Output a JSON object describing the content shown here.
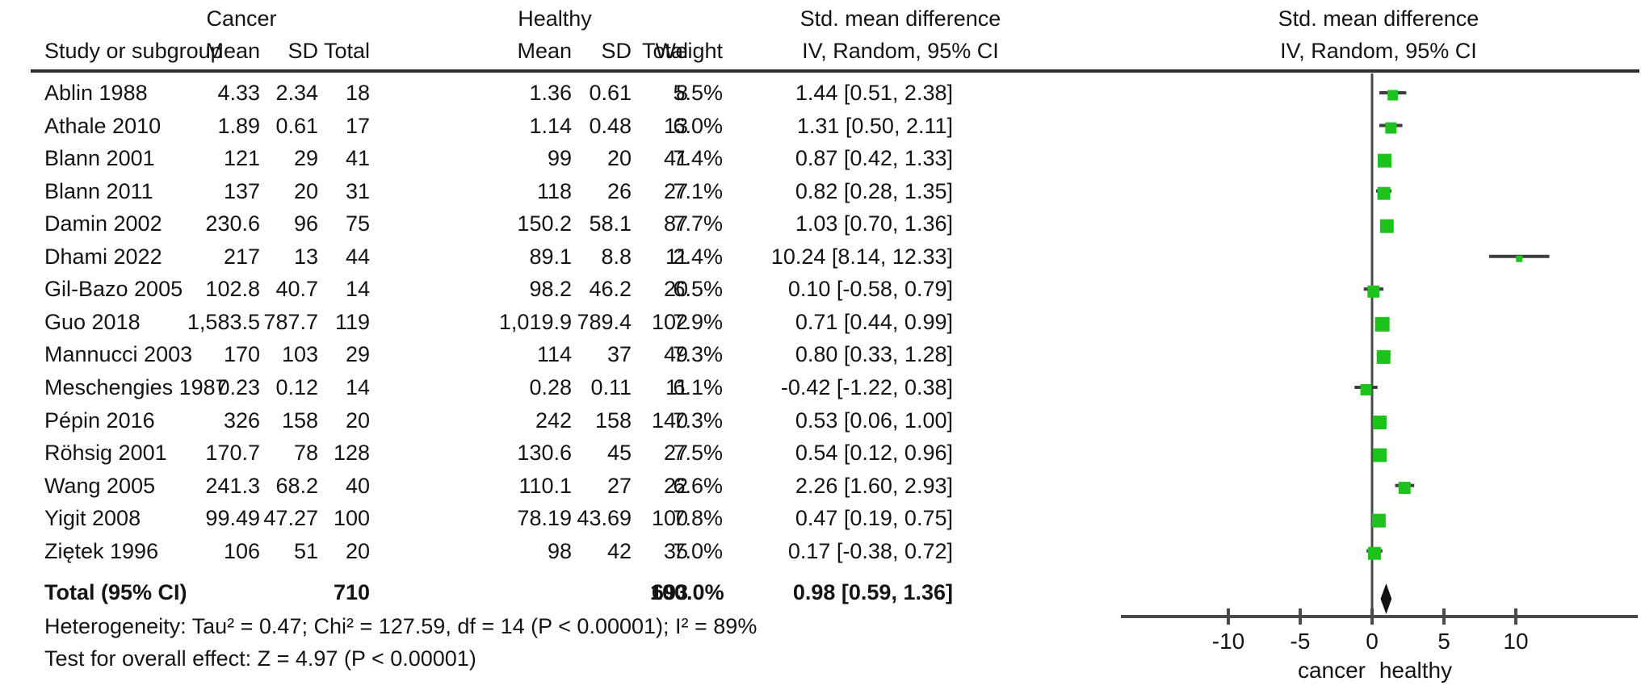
{
  "header": {
    "group_cancer": "Cancer",
    "group_healthy": "Healthy",
    "col_study": "Study or subgroup",
    "col_mean": "Mean",
    "col_sd": "SD",
    "col_total": "Total",
    "col_weight": "Weight",
    "ci_col_line1": "Std. mean difference",
    "ci_col_line2": "IV, Random, 95% CI",
    "plot_col_line1": "Std. mean difference",
    "plot_col_line2": "IV, Random, 95% CI"
  },
  "rows": [
    {
      "study": "Ablin 1988",
      "c_mean": "4.33",
      "c_sd": "2.34",
      "c_total": "18",
      "h_mean": "1.36",
      "h_sd": "0.61",
      "h_total": "8",
      "weight": "5.5%",
      "ci": "1.44 [0.51, 2.38]"
    },
    {
      "study": "Athale 2010",
      "c_mean": "1.89",
      "c_sd": "0.61",
      "c_total": "17",
      "h_mean": "1.14",
      "h_sd": "0.48",
      "h_total": "13",
      "weight": "6.0%",
      "ci": "1.31 [0.50, 2.11]"
    },
    {
      "study": "Blann 2001",
      "c_mean": "121",
      "c_sd": "29",
      "c_total": "41",
      "h_mean": "99",
      "h_sd": "20",
      "h_total": "41",
      "weight": "7.4%",
      "ci": "0.87 [0.42, 1.33]"
    },
    {
      "study": "Blann 2011",
      "c_mean": "137",
      "c_sd": "20",
      "c_total": "31",
      "h_mean": "118",
      "h_sd": "26",
      "h_total": "27",
      "weight": "7.1%",
      "ci": "0.82 [0.28, 1.35]"
    },
    {
      "study": "Damin 2002",
      "c_mean": "230.6",
      "c_sd": "96",
      "c_total": "75",
      "h_mean": "150.2",
      "h_sd": "58.1",
      "h_total": "87",
      "weight": "7.7%",
      "ci": "1.03 [0.70, 1.36]"
    },
    {
      "study": "Dhami 2022",
      "c_mean": "217",
      "c_sd": "13",
      "c_total": "44",
      "h_mean": "89.1",
      "h_sd": "8.8",
      "h_total": "11",
      "weight": "2.4%",
      "ci": "10.24 [8.14, 12.33]"
    },
    {
      "study": "Gil-Bazo 2005",
      "c_mean": "102.8",
      "c_sd": "40.7",
      "c_total": "14",
      "h_mean": "98.2",
      "h_sd": "46.2",
      "h_total": "20",
      "weight": "6.5%",
      "ci": "0.10 [-0.58, 0.79]"
    },
    {
      "study": "Guo 2018",
      "c_mean": "1,583.5",
      "c_sd": "787.7",
      "c_total": "119",
      "h_mean": "1,019.9",
      "h_sd": "789.4",
      "h_total": "102",
      "weight": "7.9%",
      "ci": "0.71 [0.44, 0.99]"
    },
    {
      "study": "Mannucci 2003",
      "c_mean": "170",
      "c_sd": "103",
      "c_total": "29",
      "h_mean": "114",
      "h_sd": "37",
      "h_total": "49",
      "weight": "7.3%",
      "ci": "0.80 [0.33, 1.28]"
    },
    {
      "study": "Meschengies 1987",
      "c_mean": "0.23",
      "c_sd": "0.12",
      "c_total": "14",
      "h_mean": "0.28",
      "h_sd": "0.11",
      "h_total": "11",
      "weight": "6.1%",
      "ci": "-0.42 [-1.22, 0.38]"
    },
    {
      "study": "Pépin 2016",
      "c_mean": "326",
      "c_sd": "158",
      "c_total": "20",
      "h_mean": "242",
      "h_sd": "158",
      "h_total": "140",
      "weight": "7.3%",
      "ci": "0.53 [0.06, 1.00]"
    },
    {
      "study": "Röhsig 2001",
      "c_mean": "170.7",
      "c_sd": "78",
      "c_total": "128",
      "h_mean": "130.6",
      "h_sd": "45",
      "h_total": "27",
      "weight": "7.5%",
      "ci": "0.54 [0.12, 0.96]"
    },
    {
      "study": "Wang 2005",
      "c_mean": "241.3",
      "c_sd": "68.2",
      "c_total": "40",
      "h_mean": "110.1",
      "h_sd": "27",
      "h_total": "22",
      "weight": "6.6%",
      "ci": "2.26 [1.60, 2.93]"
    },
    {
      "study": "Yigit 2008",
      "c_mean": "99.49",
      "c_sd": "47.27",
      "c_total": "100",
      "h_mean": "78.19",
      "h_sd": "43.69",
      "h_total": "100",
      "weight": "7.8%",
      "ci": "0.47 [0.19, 0.75]"
    },
    {
      "study": "Ziętek 1996",
      "c_mean": "106",
      "c_sd": "51",
      "c_total": "20",
      "h_mean": "98",
      "h_sd": "42",
      "h_total": "35",
      "weight": "7.0%",
      "ci": "0.17 [-0.38, 0.72]"
    }
  ],
  "total": {
    "label": "Total (95% CI)",
    "c_total": "710",
    "h_total": "693",
    "weight": "100.0%",
    "ci": "0.98 [0.59, 1.36]"
  },
  "footer": {
    "heterogeneity": "Heterogeneity: Tau² = 0.47; Chi² = 127.59, df = 14 (P < 0.00001); I² = 89%",
    "overall_effect": "Test for overall effect: Z = 4.97 (P < 0.00001)"
  },
  "chart_data": {
    "type": "scatter",
    "subtype": "forest-plot",
    "title": "Std. mean difference IV, Random, 95% CI",
    "x_axis": {
      "ticks": [
        -10,
        -5,
        0,
        5,
        10
      ],
      "range": [
        -17,
        18.5
      ],
      "zero_reference_line": 0,
      "label_left": "cancer",
      "label_right": "healthy"
    },
    "studies": [
      {
        "name": "Ablin 1988",
        "est": 1.44,
        "lo": 0.51,
        "hi": 2.38,
        "weight_pct": 5.5
      },
      {
        "name": "Athale 2010",
        "est": 1.31,
        "lo": 0.5,
        "hi": 2.11,
        "weight_pct": 6.0
      },
      {
        "name": "Blann 2001",
        "est": 0.87,
        "lo": 0.42,
        "hi": 1.33,
        "weight_pct": 7.4
      },
      {
        "name": "Blann 2011",
        "est": 0.82,
        "lo": 0.28,
        "hi": 1.35,
        "weight_pct": 7.1
      },
      {
        "name": "Damin 2002",
        "est": 1.03,
        "lo": 0.7,
        "hi": 1.36,
        "weight_pct": 7.7
      },
      {
        "name": "Dhami 2022",
        "est": 10.24,
        "lo": 8.14,
        "hi": 12.33,
        "weight_pct": 2.4
      },
      {
        "name": "Gil-Bazo 2005",
        "est": 0.1,
        "lo": -0.58,
        "hi": 0.79,
        "weight_pct": 6.5
      },
      {
        "name": "Guo 2018",
        "est": 0.71,
        "lo": 0.44,
        "hi": 0.99,
        "weight_pct": 7.9
      },
      {
        "name": "Mannucci 2003",
        "est": 0.8,
        "lo": 0.33,
        "hi": 1.28,
        "weight_pct": 7.3
      },
      {
        "name": "Meschengies 1987",
        "est": -0.42,
        "lo": -1.22,
        "hi": 0.38,
        "weight_pct": 6.1
      },
      {
        "name": "Pépin 2016",
        "est": 0.53,
        "lo": 0.06,
        "hi": 1.0,
        "weight_pct": 7.3
      },
      {
        "name": "Röhsig 2001",
        "est": 0.54,
        "lo": 0.12,
        "hi": 0.96,
        "weight_pct": 7.5
      },
      {
        "name": "Wang 2005",
        "est": 2.26,
        "lo": 1.6,
        "hi": 2.93,
        "weight_pct": 6.6
      },
      {
        "name": "Yigit 2008",
        "est": 0.47,
        "lo": 0.19,
        "hi": 0.75,
        "weight_pct": 7.8
      },
      {
        "name": "Ziętek 1996",
        "est": 0.17,
        "lo": -0.38,
        "hi": 0.72,
        "weight_pct": 7.0
      }
    ],
    "total": {
      "name": "Total (95% CI)",
      "est": 0.98,
      "lo": 0.59,
      "hi": 1.36,
      "weight_pct": 100.0,
      "shape": "diamond"
    },
    "marker_color": "#1dc21d",
    "diamond_color": "#111111",
    "line_color": "#3d3d3d"
  }
}
